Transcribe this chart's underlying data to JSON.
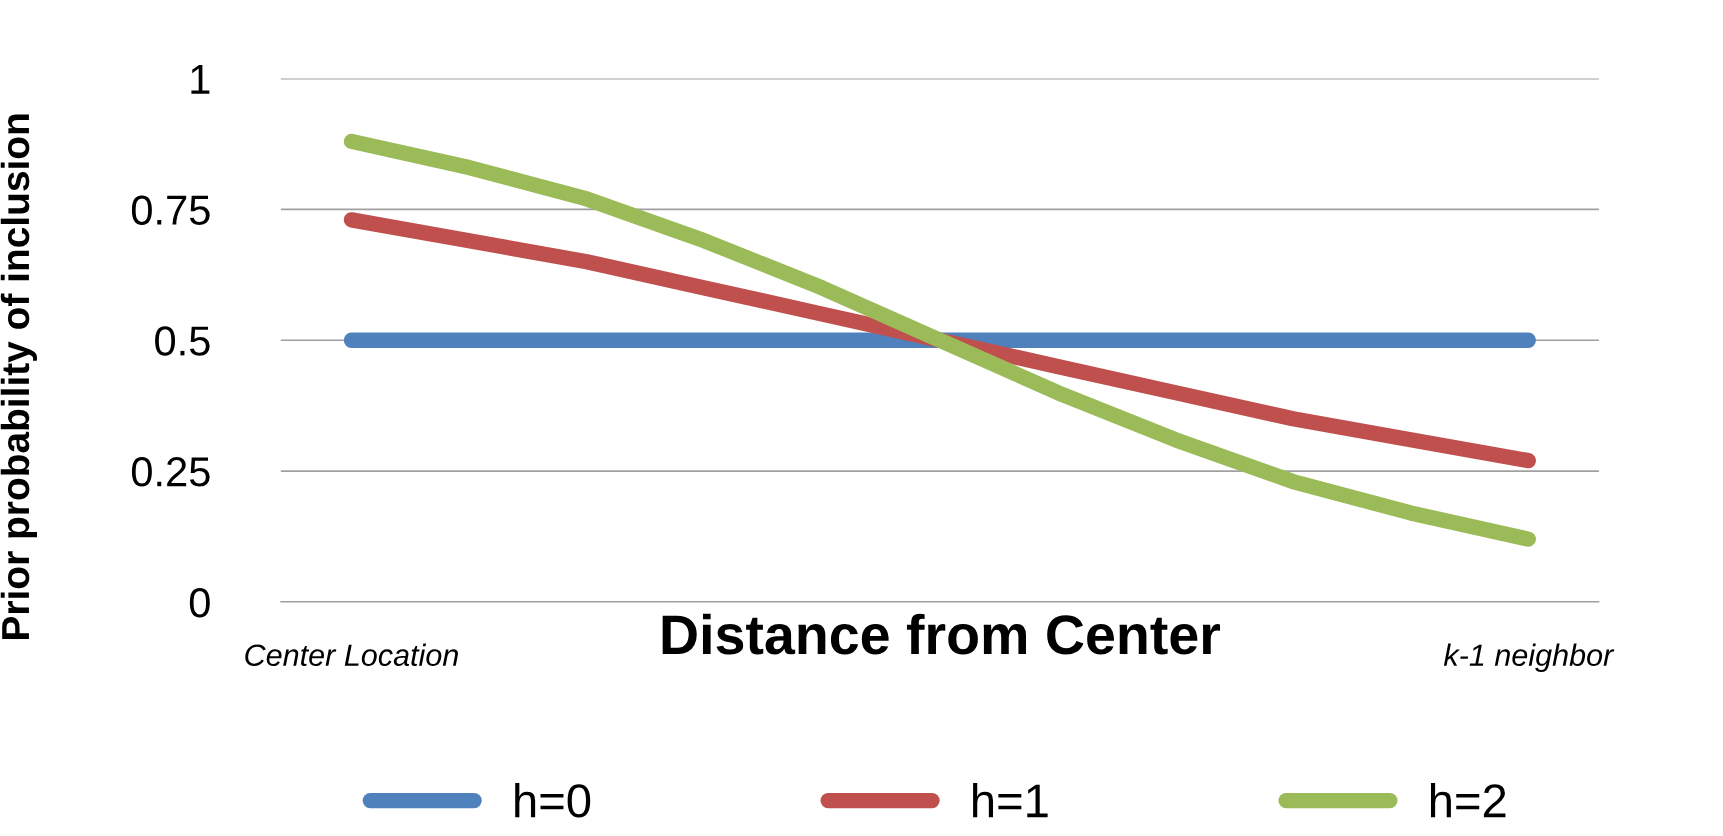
{
  "chart_data": {
    "type": "line",
    "xlabel": "Distance from Center",
    "ylabel": "Prior probability of inclusion",
    "categories": [
      "Center Location",
      null,
      null,
      null,
      null,
      null,
      null,
      null,
      null,
      null,
      "k-1 neighbor"
    ],
    "series": [
      {
        "name": "h=0",
        "color": "#4f81bd",
        "values": [
          0.5,
          0.5,
          0.5,
          0.5,
          0.5,
          0.5,
          0.5,
          0.5,
          0.5,
          0.5,
          0.5
        ]
      },
      {
        "name": "h=1",
        "color": "#c0504d",
        "values": [
          0.73,
          0.69,
          0.65,
          0.6,
          0.55,
          0.5,
          0.45,
          0.4,
          0.35,
          0.31,
          0.27
        ]
      },
      {
        "name": "h=2",
        "color": "#9bbb59",
        "values": [
          0.88,
          0.83,
          0.77,
          0.69,
          0.6,
          0.5,
          0.4,
          0.31,
          0.23,
          0.17,
          0.12
        ]
      }
    ],
    "ylim": [
      0,
      1
    ],
    "yticks": [
      0,
      0.25,
      0.5,
      {
        "value": 0.75,
        "label": "0.75"
      },
      1
    ],
    "grid": "y",
    "legend": "bottom",
    "line_style": "solid"
  }
}
